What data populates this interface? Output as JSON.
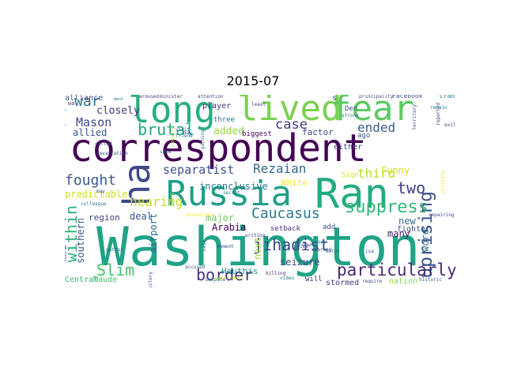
{
  "title": "2015-07",
  "words": [
    {
      "text": "Washington",
      "color": "#20a386"
    },
    {
      "text": "correspondent",
      "color": "#440154"
    },
    {
      "text": "Russia",
      "color": "#1fa088"
    },
    {
      "text": "Ran",
      "color": "#25ab82"
    },
    {
      "text": "lived",
      "color": "#7ad151"
    },
    {
      "text": "fear",
      "color": "#5ec962"
    },
    {
      "text": "long",
      "color": "#29af7f"
    },
    {
      "text": "ha",
      "color": "#3e4989"
    },
    {
      "text": "uprising",
      "color": "#3b528b"
    },
    {
      "text": "suppress",
      "color": "#35b779"
    },
    {
      "text": "Caucasus",
      "color": "#2a788e"
    },
    {
      "text": "particularly",
      "color": "#482878"
    },
    {
      "text": "jihadist",
      "color": "#3e4a89"
    },
    {
      "text": "border",
      "color": "#472d7b"
    },
    {
      "text": "within",
      "color": "#2db27d"
    },
    {
      "text": "Slim",
      "color": "#4ac16d"
    },
    {
      "text": "fought",
      "color": "#38598c"
    },
    {
      "text": "two",
      "color": "#414487"
    },
    {
      "text": "brutal",
      "color": "#22a884"
    },
    {
      "text": "separatist",
      "color": "#3b528b"
    },
    {
      "text": "Rezaian",
      "color": "#31688e"
    },
    {
      "text": "war",
      "color": "#2c728e"
    },
    {
      "text": "Mason",
      "color": "#3f4788"
    },
    {
      "text": "hearing",
      "color": "#c2df23"
    },
    {
      "text": "case",
      "color": "#443983"
    },
    {
      "text": "ended",
      "color": "#365c8d"
    },
    {
      "text": "third",
      "color": "#bddf26"
    },
    {
      "text": "closely",
      "color": "#46337f"
    },
    {
      "text": "allied",
      "color": "#39568c"
    },
    {
      "text": "added",
      "color": "#9bd93c"
    },
    {
      "text": "inconclusive",
      "color": "#2a768e"
    },
    {
      "text": "White",
      "color": "#fde725"
    },
    {
      "text": "Funny",
      "color": "#d8e219"
    },
    {
      "text": "deal",
      "color": "#3a548c"
    },
    {
      "text": "predictable",
      "color": "#d0e11c"
    },
    {
      "text": "region",
      "color": "#424086"
    },
    {
      "text": "southern",
      "color": "#38598c"
    },
    {
      "text": "airport",
      "color": "#2f6c8e"
    },
    {
      "text": "major",
      "color": "#6ece58"
    },
    {
      "text": "Arabia",
      "color": "#440154"
    },
    {
      "text": "seizure",
      "color": "#3e4c8a"
    },
    {
      "text": "next",
      "color": "#9fda3a"
    },
    {
      "text": "word",
      "color": "#2c718e"
    },
    {
      "text": "many",
      "color": "#481a6c"
    },
    {
      "text": "new",
      "color": "#2d708e"
    },
    {
      "text": "fighter",
      "color": "#3b518b"
    },
    {
      "text": "Houthis",
      "color": "#1f958b"
    },
    {
      "text": "Central",
      "color": "#35b779"
    },
    {
      "text": "Maude",
      "color": "#4ac16d"
    },
    {
      "text": "factor",
      "color": "#3f4788"
    },
    {
      "text": "either",
      "color": "#3e4a89"
    },
    {
      "text": "player",
      "color": "#472c7a"
    },
    {
      "text": "three",
      "color": "#2d708e"
    },
    {
      "text": "biggest",
      "color": "#440154"
    },
    {
      "text": "setback",
      "color": "#472c7a"
    },
    {
      "text": "add",
      "color": "#3c4f8a"
    },
    {
      "text": "stormed",
      "color": "#453781"
    },
    {
      "text": "nation",
      "color": "#8bd646"
    },
    {
      "text": "will",
      "color": "#46327e"
    },
    {
      "text": "ago",
      "color": "#3b528b"
    },
    {
      "text": "Sign",
      "color": "#dde318"
    },
    {
      "text": "s",
      "color": "#38598c"
    },
    {
      "text": "Den",
      "color": "#3a538b"
    },
    {
      "text": "Facebook",
      "color": "#3b528b"
    },
    {
      "text": "Cranial",
      "color": "#2a788e"
    },
    {
      "text": "minister",
      "color": "#414487"
    },
    {
      "text": "attention",
      "color": "#3f4889"
    },
    {
      "text": "aroused",
      "color": "#453882"
    },
    {
      "text": "principality",
      "color": "#414487"
    },
    {
      "text": "espionage",
      "color": "#2c728e"
    },
    {
      "text": "wa",
      "color": "#46337f"
    },
    {
      "text": "ment",
      "color": "#2a788e"
    },
    {
      "text": "strong",
      "color": "#2c718e"
    },
    {
      "text": "territory",
      "color": "#3e4a89"
    },
    {
      "text": "reported",
      "color": "#3f4788"
    },
    {
      "text": "exiled",
      "color": "#433e85"
    },
    {
      "text": "remain",
      "color": "#287d8e"
    },
    {
      "text": "killing",
      "color": "#472d7b"
    },
    {
      "text": "Despite",
      "color": "#2d708e"
    },
    {
      "text": "accused",
      "color": "#365d8d"
    },
    {
      "text": "mystery",
      "color": "#3b528b"
    },
    {
      "text": "video",
      "color": "#2a788e"
    },
    {
      "text": "require",
      "color": "#3e4a89"
    },
    {
      "text": "historic",
      "color": "#3b528b"
    },
    {
      "text": "least",
      "color": "#443983"
    },
    {
      "text": "visit",
      "color": "#2c728e"
    },
    {
      "text": "friend",
      "color": "#287c8e"
    },
    {
      "text": "called",
      "color": "#3b528b"
    },
    {
      "text": "devastation",
      "color": "#3e4a89"
    },
    {
      "text": "day",
      "color": "#3b528b"
    },
    {
      "text": "gaining",
      "color": "#2a788e"
    },
    {
      "text": "country",
      "color": "#a8db34"
    },
    {
      "text": "show",
      "color": "#2c728e"
    },
    {
      "text": "south",
      "color": "#c8e020"
    },
    {
      "text": "connection",
      "color": "#fde725"
    },
    {
      "text": "secret",
      "color": "#2c728e"
    },
    {
      "text": "down",
      "color": "#3e4a89"
    },
    {
      "text": "unarmed",
      "color": "#3b528b"
    },
    {
      "text": "water",
      "color": "#2a788e"
    },
    {
      "text": "isa",
      "color": "#3b528b"
    },
    {
      "text": "repairing",
      "color": "#3e4a89"
    },
    {
      "text": "gather",
      "color": "#2c728e"
    },
    {
      "text": "prime",
      "color": "#3b528b"
    },
    {
      "text": "say",
      "color": "#2a788e"
    },
    {
      "text": "writing",
      "color": "#3e4a89"
    },
    {
      "text": "moment",
      "color": "#3b528b"
    },
    {
      "text": "said",
      "color": "#2c728e"
    },
    {
      "text": "government",
      "color": "#c2df23"
    },
    {
      "text": "source",
      "color": "#3b528b"
    },
    {
      "text": "colleague",
      "color": "#2a788e"
    },
    {
      "text": "may",
      "color": "#3e4a89"
    },
    {
      "text": "military",
      "color": "#fde725"
    },
    {
      "text": "alliance",
      "color": "#3b528b"
    }
  ]
}
